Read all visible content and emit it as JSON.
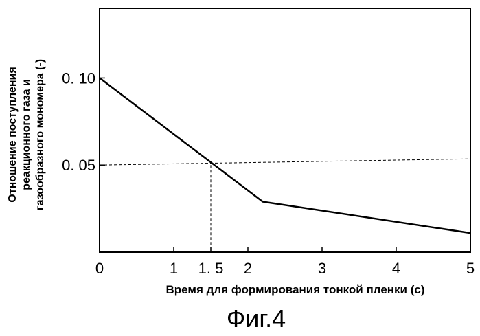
{
  "chart_data": {
    "type": "line",
    "x": [
      0,
      2.2,
      5
    ],
    "series": [
      {
        "values": [
          0.1,
          0.029,
          0.011
        ]
      }
    ],
    "xlim": [
      0,
      5
    ],
    "ylim": [
      0,
      0.14
    ],
    "x_ticks": [
      0,
      1,
      1.5,
      2,
      3,
      4,
      5
    ],
    "x_tick_labels": [
      "0",
      "1",
      "1. 5",
      "2",
      "3",
      "4",
      "5"
    ],
    "y_ticks": [
      0.1,
      0.05
    ],
    "y_tick_labels": [
      "0. 10",
      "0. 05"
    ],
    "xlabel": "Время для формирования тонкой пленки (с)",
    "ylabel_lines": [
      "Отношение поступления",
      "реакционного газа и",
      "газообразного мономера (-)"
    ],
    "reference_lines": {
      "horizontal_y": 0.05,
      "vertical_x": 1.5
    },
    "grid": false,
    "caption": "Фиг.4"
  }
}
